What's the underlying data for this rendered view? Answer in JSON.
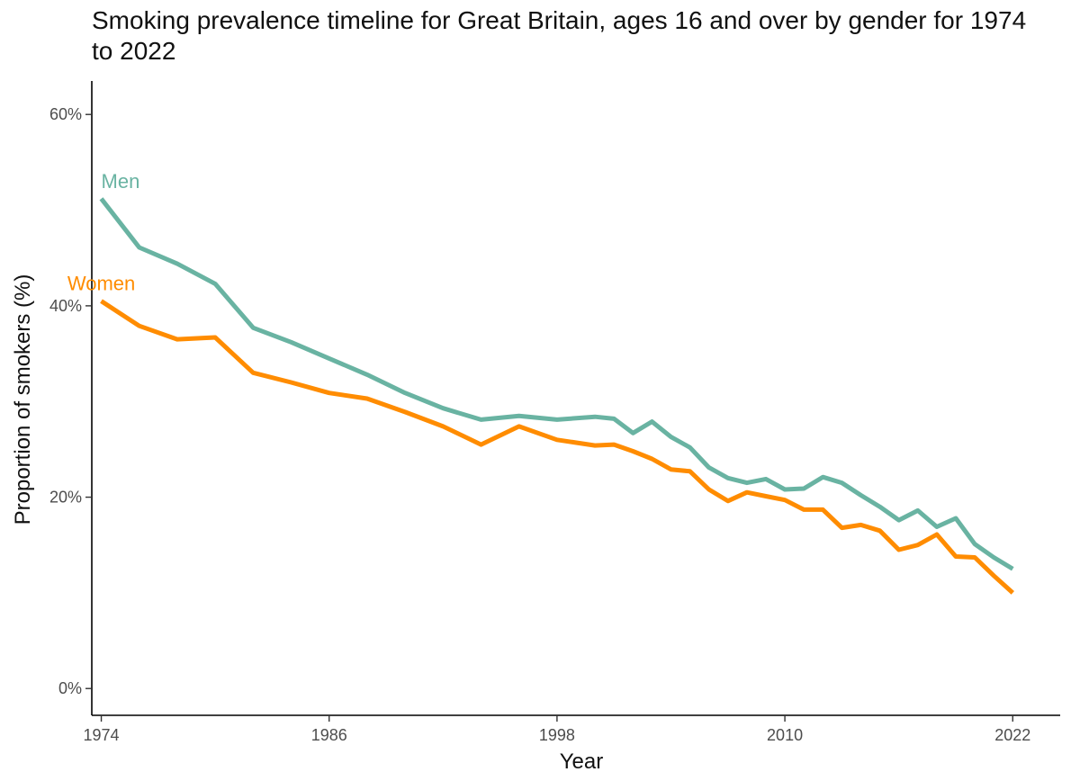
{
  "chart_data": {
    "type": "line",
    "title": "Smoking prevalence timeline for Great Britain, ages 16 and over by gender for 1974 to 2022",
    "xlabel": "Year",
    "ylabel": "Proportion of smokers (%)",
    "xlim": [
      1973.5,
      2024.5
    ],
    "ylim": [
      -2.8,
      63.5
    ],
    "x_ticks": [
      1974,
      1986,
      1998,
      2010,
      2022
    ],
    "x_tick_labels": [
      "1974",
      "1986",
      "1998",
      "2010",
      "2022"
    ],
    "y_ticks": [
      0,
      20,
      40,
      60
    ],
    "y_tick_labels": [
      "0%",
      "20%",
      "40%",
      "60%"
    ],
    "grid": false,
    "series": [
      {
        "name": "Men",
        "color": "#69b3a2",
        "x": [
          1974,
          1976,
          1978,
          1980,
          1982,
          1984,
          1986,
          1988,
          1990,
          1992,
          1994,
          1996,
          1998,
          2000,
          2001,
          2002,
          2003,
          2004,
          2005,
          2006,
          2007,
          2008,
          2009,
          2010,
          2011,
          2012,
          2013,
          2014,
          2015,
          2016,
          2017,
          2018,
          2019,
          2020,
          2021,
          2022
        ],
        "y": [
          51.2,
          46.1,
          44.4,
          42.3,
          37.7,
          36.2,
          34.5,
          32.8,
          30.9,
          29.3,
          28.1,
          28.5,
          28.1,
          28.4,
          28.2,
          26.7,
          27.9,
          26.3,
          25.2,
          23.1,
          22.0,
          21.5,
          21.9,
          20.8,
          20.9,
          22.1,
          21.5,
          20.2,
          19.0,
          17.6,
          18.6,
          16.9,
          17.8,
          15.1,
          13.7,
          12.5
        ]
      },
      {
        "name": "Women",
        "color": "#ff8c00",
        "x": [
          1974,
          1976,
          1978,
          1980,
          1982,
          1984,
          1986,
          1988,
          1990,
          1992,
          1994,
          1996,
          1998,
          2000,
          2001,
          2002,
          2003,
          2004,
          2005,
          2006,
          2007,
          2008,
          2009,
          2010,
          2011,
          2012,
          2013,
          2014,
          2015,
          2016,
          2017,
          2018,
          2019,
          2020,
          2021,
          2022
        ],
        "y": [
          40.5,
          37.9,
          36.5,
          36.7,
          33.0,
          32.0,
          30.9,
          30.3,
          28.9,
          27.4,
          25.5,
          27.4,
          26.0,
          25.4,
          25.5,
          24.8,
          24.0,
          22.9,
          22.7,
          20.8,
          19.6,
          20.5,
          20.1,
          19.7,
          18.7,
          18.7,
          16.8,
          17.1,
          16.5,
          14.5,
          15.0,
          16.1,
          13.8,
          13.7,
          11.8,
          10.0
        ]
      }
    ]
  }
}
